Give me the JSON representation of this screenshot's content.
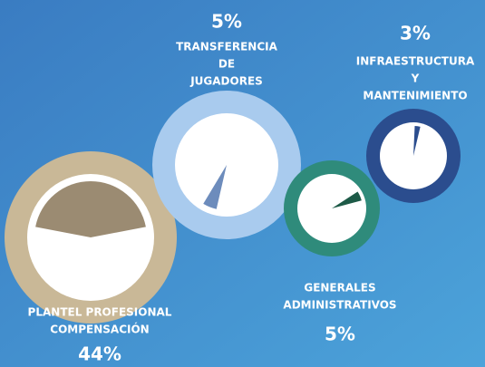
{
  "chart_data": {
    "type": "pie",
    "categories": [
      [
        "PLANTEL PROFESIONAL",
        "COMPENSACIÓN"
      ],
      [
        "TRANSFERENCIA",
        "DE",
        "JUGADORES"
      ],
      [
        "GENERALES",
        "ADMINISTRATIVOS"
      ],
      [
        "INFRAESTRUCTURA",
        "Y",
        "MANTENIMIENTO"
      ]
    ],
    "values": [
      44,
      5,
      5,
      3
    ],
    "value_labels": [
      "44%",
      "5%",
      "5%",
      "3%"
    ],
    "ring_colors": [
      "#c9b897",
      "#a9cbee",
      "#2f8b7b",
      "#2b4d8e"
    ],
    "colors": [
      "#9b8b72",
      "#6d8cbc",
      "#1d5a47",
      "#2b4d8e"
    ]
  }
}
